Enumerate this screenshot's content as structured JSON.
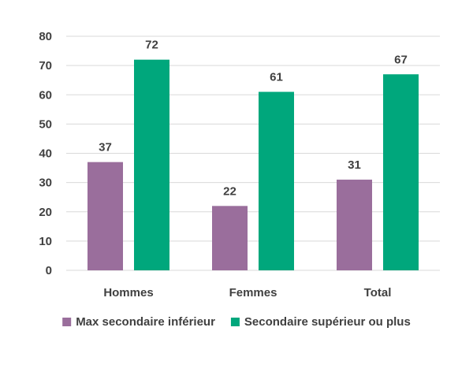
{
  "chart_data": {
    "type": "bar",
    "categories": [
      "Hommes",
      "Femmes",
      "Total"
    ],
    "series": [
      {
        "name": "Max secondaire inférieur",
        "values": [
          37,
          22,
          31
        ],
        "color": "#9a6e9c"
      },
      {
        "name": "Secondaire supérieur ou plus",
        "values": [
          72,
          61,
          67
        ],
        "color": "#00a77c"
      }
    ],
    "ylim": [
      0,
      80
    ],
    "yticks": [
      0,
      10,
      20,
      30,
      40,
      50,
      60,
      70,
      80
    ],
    "grid": true,
    "legend": "bottom"
  }
}
